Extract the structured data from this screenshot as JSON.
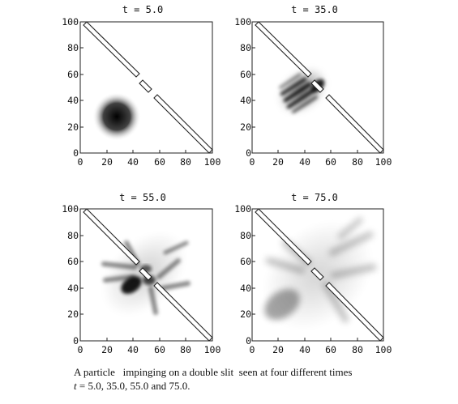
{
  "figure": {
    "panels": [
      {
        "title": "t = 5.0",
        "t": 5.0
      },
      {
        "title": "t = 35.0",
        "t": 35.0
      },
      {
        "title": "t = 55.0",
        "t": 55.0
      },
      {
        "title": "t = 75.0",
        "t": 75.0
      }
    ],
    "x_ticks": [
      "0",
      "20",
      "40",
      "60",
      "80",
      "100"
    ],
    "y_ticks": [
      "0",
      "20",
      "40",
      "60",
      "80",
      "100"
    ],
    "axis_range": [
      0,
      100
    ]
  },
  "caption": {
    "line1": "A particle   impinging on a double slit  seen at four different times",
    "line2_var": "t",
    "line2_rest": " = 5.0, 35.0, 55.0 and 75.0."
  }
}
